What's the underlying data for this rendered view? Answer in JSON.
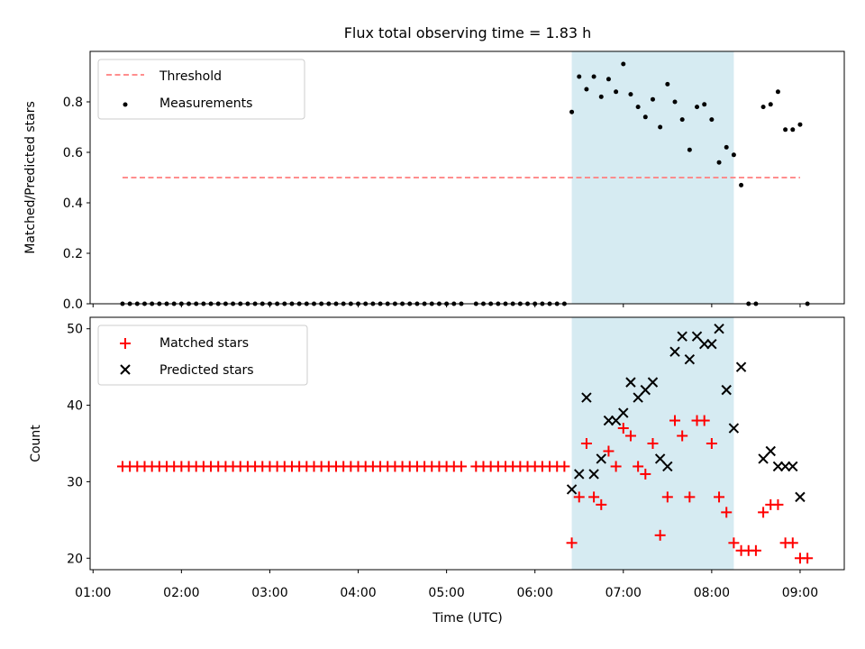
{
  "title": "Flux total observing time = 1.83 h",
  "colors": {
    "threshold": "#ff7f7f",
    "measurement": "#000000",
    "matched": "#ff0000",
    "predicted": "#000000",
    "shade": "#add8e6"
  },
  "chart_data": [
    {
      "type": "scatter",
      "name": "ratio-panel",
      "ylabel": "Matched/Predicted stars",
      "xlabel": "",
      "ylim": [
        0,
        1.0
      ],
      "y_ticks": [
        0.0,
        0.2,
        0.4,
        0.6,
        0.8
      ],
      "y_tick_labels": [
        "0.0",
        "0.2",
        "0.4",
        "0.6",
        "0.8"
      ],
      "legend": {
        "placement": "upper-left",
        "entries": [
          "Threshold",
          "Measurements"
        ]
      },
      "shaded_interval": [
        "06:25",
        "08:15"
      ],
      "threshold": {
        "name": "Threshold",
        "x_start": "01:20",
        "x_end": "09:00",
        "y": 0.5
      },
      "series": [
        {
          "name": "Measurements",
          "x": [
            "06:25",
            "06:30",
            "06:35",
            "06:40",
            "06:45",
            "06:50",
            "06:55",
            "07:00",
            "07:05",
            "07:10",
            "07:15",
            "07:20",
            "07:25",
            "07:30",
            "07:35",
            "07:40",
            "07:45",
            "07:50",
            "07:55",
            "08:00",
            "08:05",
            "08:10",
            "08:15",
            "08:20",
            "08:25",
            "08:30",
            "08:35",
            "08:40",
            "08:45",
            "08:50",
            "08:55",
            "09:00",
            "09:05"
          ],
          "y": [
            0.76,
            0.9,
            0.85,
            0.9,
            0.82,
            0.89,
            0.84,
            0.95,
            0.83,
            0.78,
            0.74,
            0.81,
            0.7,
            0.87,
            0.8,
            0.73,
            0.61,
            0.78,
            0.79,
            0.73,
            0.56,
            0.62,
            0.59,
            0.47,
            0.0,
            0.0,
            0.78,
            0.79,
            0.84,
            0.69,
            0.69,
            0.71,
            0.0
          ]
        }
      ],
      "zero_run_segments": [
        {
          "start": "01:20",
          "end": "05:10",
          "step_minutes": 5,
          "y": 0.0
        },
        {
          "start": "05:20",
          "end": "06:20",
          "step_minutes": 5,
          "y": 0.0
        }
      ]
    },
    {
      "type": "scatter",
      "name": "count-panel",
      "ylabel": "Count",
      "xlabel": "Time (UTC)",
      "ylim": [
        18.5,
        51.5
      ],
      "y_ticks": [
        20,
        30,
        40,
        50
      ],
      "y_tick_labels": [
        "20",
        "30",
        "40",
        "50"
      ],
      "x_ticks": [
        "01:00",
        "02:00",
        "03:00",
        "04:00",
        "05:00",
        "06:00",
        "07:00",
        "08:00",
        "09:00"
      ],
      "xlim": [
        "00:58",
        "09:30"
      ],
      "legend": {
        "placement": "upper-left",
        "entries": [
          "Matched stars",
          "Predicted stars"
        ]
      },
      "shaded_interval": [
        "06:25",
        "08:15"
      ],
      "series": [
        {
          "name": "Matched stars",
          "constant_runs": [
            {
              "start": "01:20",
              "end": "05:10",
              "step_minutes": 5,
              "y": 32
            },
            {
              "start": "05:20",
              "end": "06:20",
              "step_minutes": 5,
              "y": 32
            }
          ],
          "x": [
            "06:25",
            "06:30",
            "06:35",
            "06:40",
            "06:45",
            "06:50",
            "06:55",
            "07:00",
            "07:05",
            "07:10",
            "07:15",
            "07:20",
            "07:25",
            "07:30",
            "07:35",
            "07:40",
            "07:45",
            "07:50",
            "07:55",
            "08:00",
            "08:05",
            "08:10",
            "08:15",
            "08:20",
            "08:25",
            "08:30",
            "08:35",
            "08:40",
            "08:45",
            "08:50",
            "08:55",
            "09:00",
            "09:05"
          ],
          "y": [
            22,
            28,
            35,
            28,
            27,
            34,
            32,
            37,
            36,
            32,
            31,
            35,
            23,
            28,
            38,
            36,
            28,
            38,
            38,
            35,
            28,
            26,
            22,
            21,
            21,
            21,
            26,
            27,
            27,
            22,
            22,
            20,
            20
          ]
        },
        {
          "name": "Predicted stars",
          "x": [
            "06:25",
            "06:30",
            "06:35",
            "06:40",
            "06:45",
            "06:50",
            "06:55",
            "07:00",
            "07:05",
            "07:10",
            "07:15",
            "07:20",
            "07:25",
            "07:30",
            "07:35",
            "07:40",
            "07:45",
            "07:50",
            "07:55",
            "08:00",
            "08:05",
            "08:10",
            "08:15",
            "08:20",
            "08:35",
            "08:40",
            "08:45",
            "08:50",
            "08:55",
            "09:00"
          ],
          "y": [
            29,
            31,
            41,
            31,
            33,
            38,
            38,
            39,
            43,
            41,
            42,
            43,
            33,
            32,
            47,
            49,
            46,
            49,
            48,
            48,
            50,
            42,
            37,
            45,
            33,
            34,
            32,
            32,
            32,
            28
          ]
        }
      ]
    }
  ]
}
